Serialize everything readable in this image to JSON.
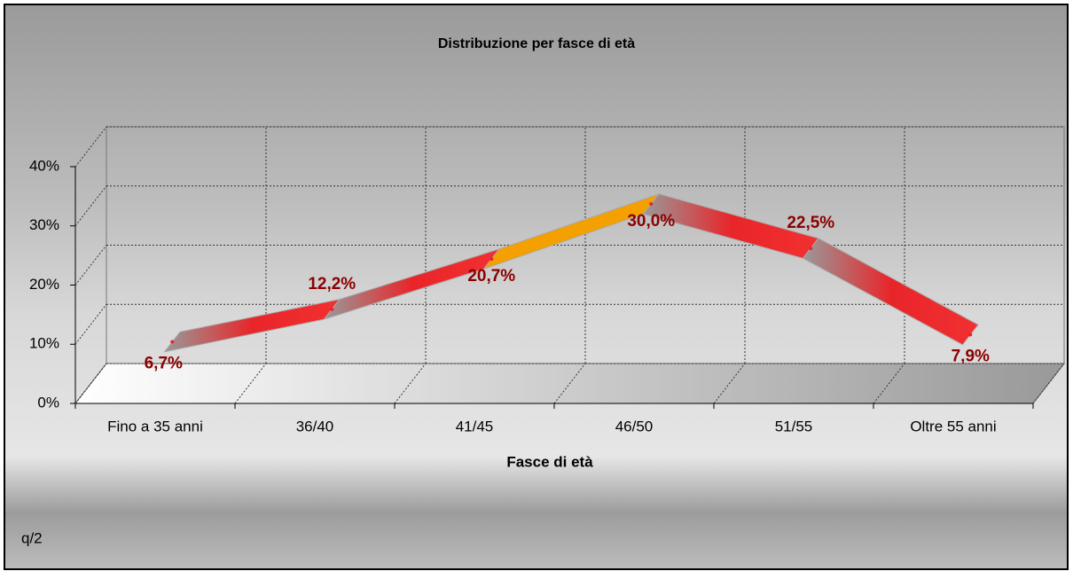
{
  "chart_data": {
    "type": "line3d",
    "title": "Distribuzione per fasce di età",
    "x_label": "Fasce di età",
    "annotation": "q/2",
    "categories": [
      "Fino a 35 anni",
      "36/40",
      "41/45",
      "46/50",
      "51/55",
      "Oltre 55 anni"
    ],
    "values": [
      6.7,
      12.2,
      20.7,
      30.0,
      22.5,
      7.9
    ],
    "value_labels": [
      "6,7%",
      "12,2%",
      "20,7%",
      "30,0%",
      "22,5%",
      "7,9%"
    ],
    "color": "#e8262a",
    "label_color": "#8b0000",
    "ylim": [
      0,
      40
    ],
    "yticks": [
      {
        "value": 0,
        "label": "0%"
      },
      {
        "value": 10,
        "label": "10%"
      },
      {
        "value": 20,
        "label": "20%"
      },
      {
        "value": 30,
        "label": "30%"
      },
      {
        "value": 40,
        "label": "40%"
      }
    ],
    "grid": true
  }
}
